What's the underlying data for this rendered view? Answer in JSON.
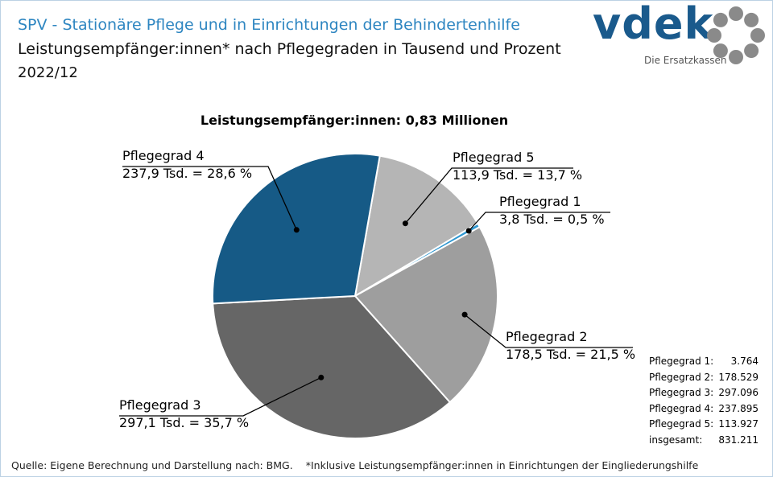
{
  "header": {
    "title_line1": "SPV - Stationäre Pflege und in Einrichtungen der Behindertenhilfe",
    "title_line2": "Leistungsempfänger:innen*  nach Pflegegraden in Tausend und Prozent",
    "period": "2022/12"
  },
  "logo": {
    "word": "vdek",
    "tagline": "Die Ersatzkassen",
    "ring_icon": "ring-of-dots-icon"
  },
  "colors": {
    "title_blue": "#2e86c1",
    "pg1": "#2e97d1",
    "pg2": "#9e9e9e",
    "pg3": "#666666",
    "pg4": "#165a86",
    "pg5": "#b5b5b5",
    "logo_blue": "#1a5a8c",
    "logo_gray": "#8a8a8a"
  },
  "chart_data": {
    "type": "pie",
    "title": "Leistungsempfänger:innen:  0,83 Millionen",
    "slices": [
      {
        "name": "Pflegegrad 1",
        "value": 3.764,
        "label": "3,8 Tsd. = 0,5  %",
        "color": "#2e97d1"
      },
      {
        "name": "Pflegegrad 2",
        "value": 178.529,
        "label": "178,5  Tsd. = 21,5  %",
        "color": "#9e9e9e"
      },
      {
        "name": "Pflegegrad 3",
        "value": 297.096,
        "label": "297,1  Tsd. = 35,7  %",
        "color": "#666666"
      },
      {
        "name": "Pflegegrad 4",
        "value": 237.895,
        "label": "237,9  Tsd. = 28,6  %",
        "color": "#165a86"
      },
      {
        "name": "Pflegegrad 5",
        "value": 113.927,
        "label": "113,9  Tsd. = 13,7  %",
        "color": "#b5b5b5"
      }
    ],
    "summary": [
      {
        "label": "Pflegegrad 1:",
        "value": "3.764"
      },
      {
        "label": "Pflegegrad 2:",
        "value": "178.529"
      },
      {
        "label": "Pflegegrad 3:",
        "value": "297.096"
      },
      {
        "label": "Pflegegrad 4:",
        "value": "237.895"
      },
      {
        "label": "Pflegegrad 5:",
        "value": "113.927"
      },
      {
        "label": "insgesamt:",
        "value": "831.211"
      }
    ]
  },
  "footer": {
    "source": "Quelle: Eigene Berechnung und Darstellung nach: BMG.",
    "note": "*Inklusive Leistungsempfänger:innen  in Einrichtungen der Eingliederungshilfe"
  }
}
